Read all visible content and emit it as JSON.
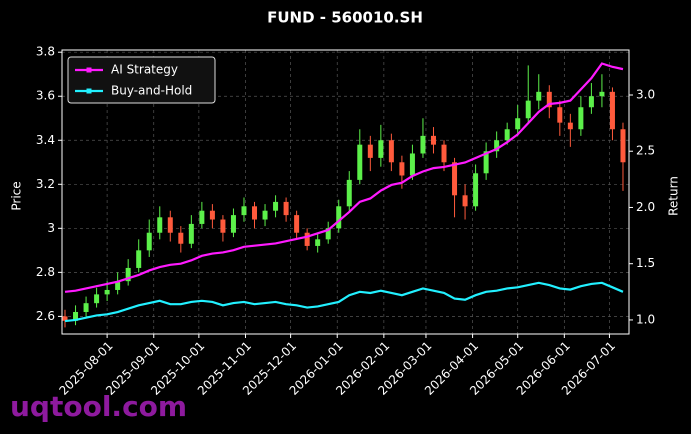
{
  "chart_data": {
    "type": "candlestick",
    "title": "FUND - 560010.SH",
    "ylabel": "Price",
    "y2label": "Return",
    "x": [
      "2025-07-04",
      "2025-07-11",
      "2025-07-18",
      "2025-07-25",
      "2025-08-01",
      "2025-08-08",
      "2025-08-15",
      "2025-08-22",
      "2025-08-29",
      "2025-09-05",
      "2025-09-12",
      "2025-09-19",
      "2025-09-26",
      "2025-10-03",
      "2025-10-10",
      "2025-10-17",
      "2025-10-24",
      "2025-10-31",
      "2025-11-07",
      "2025-11-14",
      "2025-11-21",
      "2025-11-28",
      "2025-12-05",
      "2025-12-12",
      "2025-12-19",
      "2025-12-26",
      "2026-01-02",
      "2026-01-09",
      "2026-01-16",
      "2026-01-23",
      "2026-01-30",
      "2026-02-06",
      "2026-02-13",
      "2026-02-20",
      "2026-02-27",
      "2026-03-06",
      "2026-03-13",
      "2026-03-20",
      "2026-03-27",
      "2026-04-03",
      "2026-04-10",
      "2026-04-17",
      "2026-04-24",
      "2026-05-01",
      "2026-05-08",
      "2026-05-15",
      "2026-05-22",
      "2026-05-29",
      "2026-06-05",
      "2026-06-12",
      "2026-06-19",
      "2026-06-26",
      "2026-07-03",
      "2026-07-10"
    ],
    "open": [
      2.6,
      2.58,
      2.62,
      2.66,
      2.7,
      2.72,
      2.76,
      2.82,
      2.9,
      2.98,
      3.05,
      2.98,
      2.93,
      3.02,
      3.08,
      3.04,
      2.98,
      3.06,
      3.1,
      3.04,
      3.08,
      3.12,
      3.06,
      2.98,
      2.92,
      2.95,
      3.0,
      3.1,
      3.22,
      3.38,
      3.32,
      3.4,
      3.3,
      3.24,
      3.34,
      3.42,
      3.38,
      3.3,
      3.15,
      3.1,
      3.25,
      3.35,
      3.4,
      3.45,
      3.5,
      3.58,
      3.62,
      3.55,
      3.48,
      3.45,
      3.55,
      3.6,
      3.62,
      3.45
    ],
    "high": [
      2.63,
      2.65,
      2.69,
      2.73,
      2.76,
      2.8,
      2.86,
      2.95,
      3.04,
      3.1,
      3.08,
      3.01,
      3.06,
      3.12,
      3.11,
      3.06,
      3.09,
      3.14,
      3.12,
      3.11,
      3.15,
      3.14,
      3.08,
      3.0,
      2.98,
      3.03,
      3.13,
      3.26,
      3.45,
      3.42,
      3.47,
      3.43,
      3.33,
      3.38,
      3.5,
      3.46,
      3.4,
      3.32,
      3.2,
      3.29,
      3.39,
      3.44,
      3.48,
      3.56,
      3.74,
      3.7,
      3.65,
      3.58,
      3.52,
      3.6,
      3.66,
      3.7,
      3.64,
      3.48
    ],
    "low": [
      2.55,
      2.56,
      2.6,
      2.64,
      2.67,
      2.7,
      2.74,
      2.8,
      2.87,
      2.95,
      2.94,
      2.89,
      2.91,
      3.0,
      3.0,
      2.94,
      2.96,
      3.03,
      3.0,
      3.01,
      3.05,
      3.03,
      2.95,
      2.9,
      2.89,
      2.93,
      2.98,
      3.08,
      3.2,
      3.26,
      3.28,
      3.26,
      3.18,
      3.22,
      3.32,
      3.34,
      3.26,
      3.05,
      3.04,
      3.08,
      3.22,
      3.32,
      3.38,
      3.42,
      3.48,
      3.54,
      3.5,
      3.42,
      3.37,
      3.42,
      3.52,
      3.55,
      3.4,
      3.17
    ],
    "close": [
      2.58,
      2.62,
      2.66,
      2.7,
      2.72,
      2.76,
      2.82,
      2.9,
      2.98,
      3.05,
      2.98,
      2.93,
      3.02,
      3.08,
      3.04,
      2.98,
      3.06,
      3.1,
      3.04,
      3.08,
      3.12,
      3.06,
      2.98,
      2.92,
      2.95,
      3.0,
      3.1,
      3.22,
      3.38,
      3.32,
      3.4,
      3.3,
      3.24,
      3.34,
      3.42,
      3.38,
      3.3,
      3.15,
      3.1,
      3.25,
      3.35,
      3.4,
      3.45,
      3.5,
      3.58,
      3.62,
      3.55,
      3.48,
      3.45,
      3.55,
      3.6,
      3.62,
      3.45,
      3.3
    ],
    "up_color": "#5cf04a",
    "down_color": "#ff5a3c",
    "series": [
      {
        "name": "AI Strategy",
        "color": "#ff1aff",
        "axis": "y2",
        "values": [
          1.25,
          1.26,
          1.28,
          1.3,
          1.32,
          1.34,
          1.37,
          1.4,
          1.44,
          1.47,
          1.49,
          1.5,
          1.53,
          1.57,
          1.59,
          1.6,
          1.62,
          1.65,
          1.66,
          1.67,
          1.68,
          1.7,
          1.72,
          1.74,
          1.77,
          1.8,
          1.88,
          1.96,
          2.05,
          2.08,
          2.15,
          2.2,
          2.22,
          2.28,
          2.32,
          2.35,
          2.36,
          2.38,
          2.4,
          2.44,
          2.48,
          2.52,
          2.58,
          2.65,
          2.75,
          2.85,
          2.92,
          2.93,
          2.95,
          3.05,
          3.15,
          3.28,
          3.25,
          3.23
        ]
      },
      {
        "name": "Buy-and-Hold",
        "color": "#22f0ff",
        "axis": "y2",
        "values": [
          0.99,
          1.0,
          1.02,
          1.04,
          1.05,
          1.07,
          1.1,
          1.13,
          1.15,
          1.17,
          1.14,
          1.14,
          1.16,
          1.17,
          1.16,
          1.13,
          1.15,
          1.16,
          1.14,
          1.15,
          1.16,
          1.14,
          1.13,
          1.11,
          1.12,
          1.14,
          1.16,
          1.22,
          1.25,
          1.24,
          1.26,
          1.24,
          1.22,
          1.25,
          1.28,
          1.26,
          1.24,
          1.19,
          1.18,
          1.22,
          1.25,
          1.26,
          1.28,
          1.29,
          1.31,
          1.33,
          1.31,
          1.28,
          1.27,
          1.3,
          1.32,
          1.33,
          1.29,
          1.25
        ]
      }
    ],
    "xlim": [
      "2025-07-02",
      "2026-07-14"
    ],
    "xticks": [
      "2025-08-01",
      "2025-09-01",
      "2025-10-01",
      "2025-11-01",
      "2025-12-01",
      "2026-01-01",
      "2026-02-01",
      "2026-03-01",
      "2026-04-01",
      "2026-05-01",
      "2026-06-01",
      "2026-07-01"
    ],
    "ylim": [
      2.52,
      3.81
    ],
    "yticks": [
      2.6,
      2.8,
      3.0,
      3.2,
      3.4,
      3.6,
      3.8
    ],
    "y2lim": [
      0.875,
      3.4
    ],
    "y2ticks": [
      {
        "value": 1,
        "label": "1.0"
      },
      1.5,
      {
        "value": 2,
        "label": "2.0"
      },
      2.5,
      {
        "value": 3,
        "label": "3.0"
      }
    ],
    "grid": true,
    "legend": "upper left",
    "watermark": "uqtool.com"
  }
}
